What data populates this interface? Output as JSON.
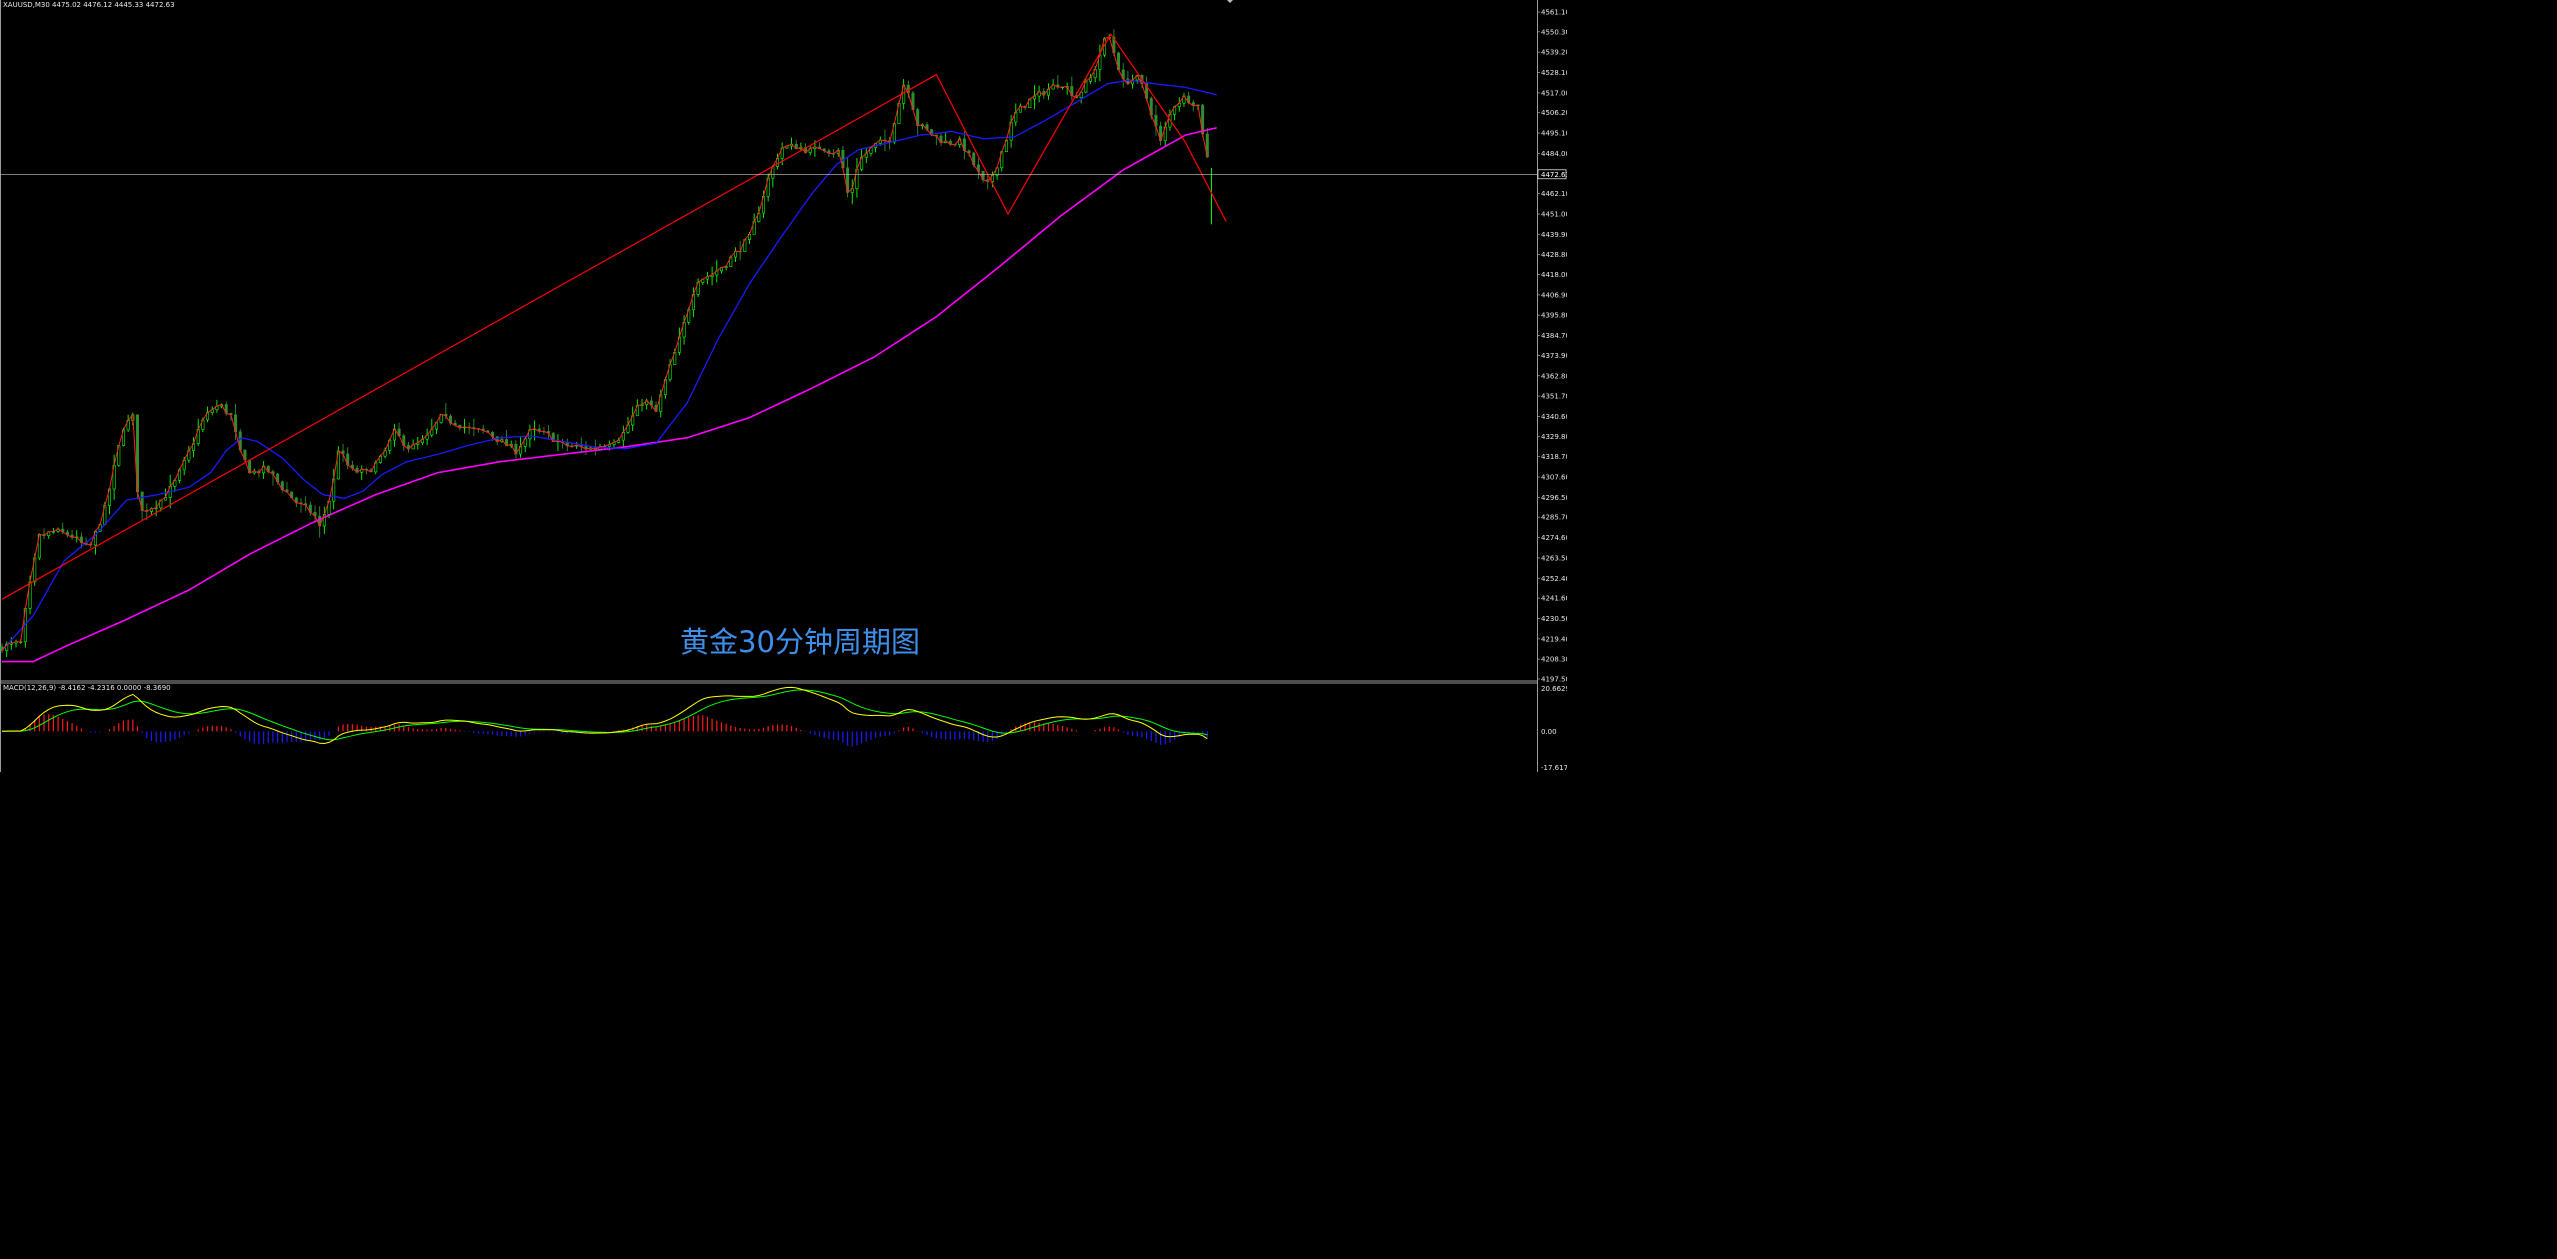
{
  "header": {
    "main_title": "XAUUSD,M30  4475.02 4476.12 4445.33 4472.63",
    "macd_title": "MACD(12,26,9) -8.4162 -4.2316 0.0000 -8.3690"
  },
  "caption": "黄金30分钟周期图",
  "current_price_label": "4472.63",
  "colors": {
    "background": "#000000",
    "bull_candle": "#00ff00",
    "bear_candle": "#2f8f2f",
    "price_line": "#ff2020",
    "ma_blue": "#1a1aff",
    "ma_magenta": "#ff00ff",
    "zigzag": "#ff0000",
    "macd_positive": "#ff1a1a",
    "macd_negative": "#1a1aff",
    "macd_line": "#ffff00",
    "signal_line": "#00ff00",
    "caption": "#3e8fea"
  },
  "chart_data": [
    {
      "type": "candlestick",
      "symbol": "XAUUSD",
      "timeframe": "M30",
      "title": "XAUUSD,M30",
      "ohlc_current": {
        "open": 4475.02,
        "high": 4476.12,
        "low": 4445.33,
        "close": 4472.63
      },
      "x_count": 255,
      "y_ticks": [
        "4561.10",
        "4550.30",
        "4539.20",
        "4528.10",
        "4517.00",
        "4506.20",
        "4495.10",
        "4484.00",
        "4462.10",
        "4451.00",
        "4439.90",
        "4428.80",
        "4418.00",
        "4406.90",
        "4395.80",
        "4384.70",
        "4373.90",
        "4362.80",
        "4351.70",
        "4340.60",
        "4329.80",
        "4318.70",
        "4307.60",
        "4296.50",
        "4285.70",
        "4274.60",
        "4263.50",
        "4252.40",
        "4241.60",
        "4230.50",
        "4219.40",
        "4208.30",
        "4197.50"
      ],
      "ylim": [
        4197.5,
        4561.1
      ],
      "close_path": [
        [
          0,
          4215
        ],
        [
          6,
          4217
        ],
        [
          8,
          4240
        ],
        [
          12,
          4275
        ],
        [
          17,
          4278
        ],
        [
          22,
          4276
        ],
        [
          28,
          4268
        ],
        [
          33,
          4290
        ],
        [
          39,
          4335
        ],
        [
          42,
          4340
        ],
        [
          44,
          4288
        ],
        [
          50,
          4293
        ],
        [
          55,
          4303
        ],
        [
          59,
          4317
        ],
        [
          64,
          4337
        ],
        [
          67,
          4344
        ],
        [
          70,
          4347
        ],
        [
          74,
          4340
        ],
        [
          76,
          4322
        ],
        [
          80,
          4310
        ],
        [
          85,
          4312
        ],
        [
          90,
          4302
        ],
        [
          95,
          4293
        ],
        [
          100,
          4288
        ],
        [
          102,
          4280
        ],
        [
          106,
          4300
        ],
        [
          108,
          4323
        ],
        [
          112,
          4311
        ],
        [
          117,
          4310
        ],
        [
          122,
          4318
        ],
        [
          126,
          4332
        ],
        [
          131,
          4323
        ],
        [
          136,
          4328
        ],
        [
          141,
          4340
        ],
        [
          146,
          4337
        ],
        [
          151,
          4333
        ],
        [
          156,
          4332
        ],
        [
          161,
          4326
        ],
        [
          165,
          4322
        ],
        [
          170,
          4333
        ],
        [
          176,
          4330
        ],
        [
          180,
          4325
        ],
        [
          185,
          4324
        ],
        [
          190,
          4323
        ],
        [
          195,
          4327
        ],
        [
          199,
          4330
        ],
        [
          203,
          4342
        ],
        [
          206,
          4350
        ],
        [
          210,
          4343
        ],
        [
          213,
          4360
        ],
        [
          218,
          4385
        ],
        [
          223,
          4415
        ],
        [
          228,
          4418
        ],
        [
          233,
          4425
        ],
        [
          240,
          4438
        ],
        [
          243,
          4453
        ],
        [
          246,
          4470
        ],
        [
          250,
          4487
        ],
        [
          255,
          4488
        ],
        [
          260,
          4485
        ],
        [
          263,
          4488
        ],
        [
          266,
          4485
        ],
        [
          269,
          4485
        ],
        [
          272,
          4458
        ],
        [
          275,
          4480
        ],
        [
          280,
          4488
        ],
        [
          285,
          4492
        ],
        [
          290,
          4525
        ],
        [
          294,
          4500
        ],
        [
          298,
          4495
        ],
        [
          303,
          4490
        ],
        [
          308,
          4490
        ],
        [
          312,
          4478
        ],
        [
          316,
          4465
        ],
        [
          320,
          4480
        ],
        [
          325,
          4505
        ],
        [
          330,
          4513
        ],
        [
          335,
          4518
        ],
        [
          340,
          4523
        ],
        [
          345,
          4515
        ],
        [
          350,
          4526
        ],
        [
          355,
          4550
        ],
        [
          360,
          4523
        ],
        [
          365,
          4525
        ],
        [
          368,
          4512
        ],
        [
          372,
          4490
        ],
        [
          376,
          4510
        ],
        [
          380,
          4515
        ],
        [
          384,
          4510
        ],
        [
          388,
          4472
        ]
      ],
      "series": [
        {
          "type": "line",
          "values_path": [
            [
              0,
              4213
            ],
            [
              10,
              4232
            ],
            [
              20,
              4262
            ],
            [
              30,
              4276
            ],
            [
              40,
              4295
            ],
            [
              50,
              4298
            ],
            [
              60,
              4302
            ],
            [
              67,
              4310
            ],
            [
              72,
              4322
            ],
            [
              77,
              4329
            ],
            [
              82,
              4327
            ],
            [
              90,
              4318
            ],
            [
              97,
              4306
            ],
            [
              103,
              4298
            ],
            [
              110,
              4296
            ],
            [
              116,
              4300
            ],
            [
              122,
              4309
            ],
            [
              130,
              4316
            ],
            [
              140,
              4320
            ],
            [
              150,
              4325
            ],
            [
              160,
              4329
            ],
            [
              170,
              4330
            ],
            [
              180,
              4327
            ],
            [
              190,
              4324
            ],
            [
              200,
              4323
            ],
            [
              210,
              4326
            ],
            [
              220,
              4348
            ],
            [
              230,
              4383
            ],
            [
              240,
              4413
            ],
            [
              250,
              4438
            ],
            [
              260,
              4462
            ],
            [
              268,
              4478
            ],
            [
              275,
              4486
            ],
            [
              285,
              4490
            ],
            [
              295,
              4494
            ],
            [
              305,
              4496
            ],
            [
              315,
              4492
            ],
            [
              325,
              4493
            ],
            [
              335,
              4502
            ],
            [
              345,
              4512
            ],
            [
              355,
              4522
            ],
            [
              362,
              4524
            ],
            [
              370,
              4522
            ],
            [
              380,
              4520
            ],
            [
              390,
              4516
            ]
          ]
        },
        {
          "type": "line",
          "values_path": [
            [
              0,
              4207
            ],
            [
              10,
              4207
            ],
            [
              20,
              4215
            ],
            [
              40,
              4230
            ],
            [
              60,
              4246
            ],
            [
              80,
              4266
            ],
            [
              100,
              4283
            ],
            [
              120,
              4298
            ],
            [
              140,
              4310
            ],
            [
              160,
              4316
            ],
            [
              180,
              4320
            ],
            [
              200,
              4324
            ],
            [
              220,
              4329
            ],
            [
              240,
              4340
            ],
            [
              260,
              4356
            ],
            [
              280,
              4373
            ],
            [
              300,
              4395
            ],
            [
              320,
              4422
            ],
            [
              340,
              4450
            ],
            [
              360,
              4475
            ],
            [
              380,
              4494
            ],
            [
              390,
              4498
            ]
          ]
        },
        {
          "type": "line",
          "values_path": [
            [
              0,
              4241
            ],
            [
              300,
              4527
            ],
            [
              323,
              4451
            ],
            [
              356,
              4549
            ],
            [
              380,
              4490
            ],
            [
              393,
              4447
            ]
          ]
        }
      ]
    },
    {
      "type": "bar",
      "title": "MACD(12,26,9)",
      "values": {
        "macd": -8.4162,
        "signal": -4.2316,
        "extra": 0.0,
        "histogram": -8.369
      },
      "y_ticks": [
        "20.6629",
        "0.00",
        "-17.6175"
      ],
      "ylim": [
        -17.6175,
        20.6629
      ]
    }
  ]
}
